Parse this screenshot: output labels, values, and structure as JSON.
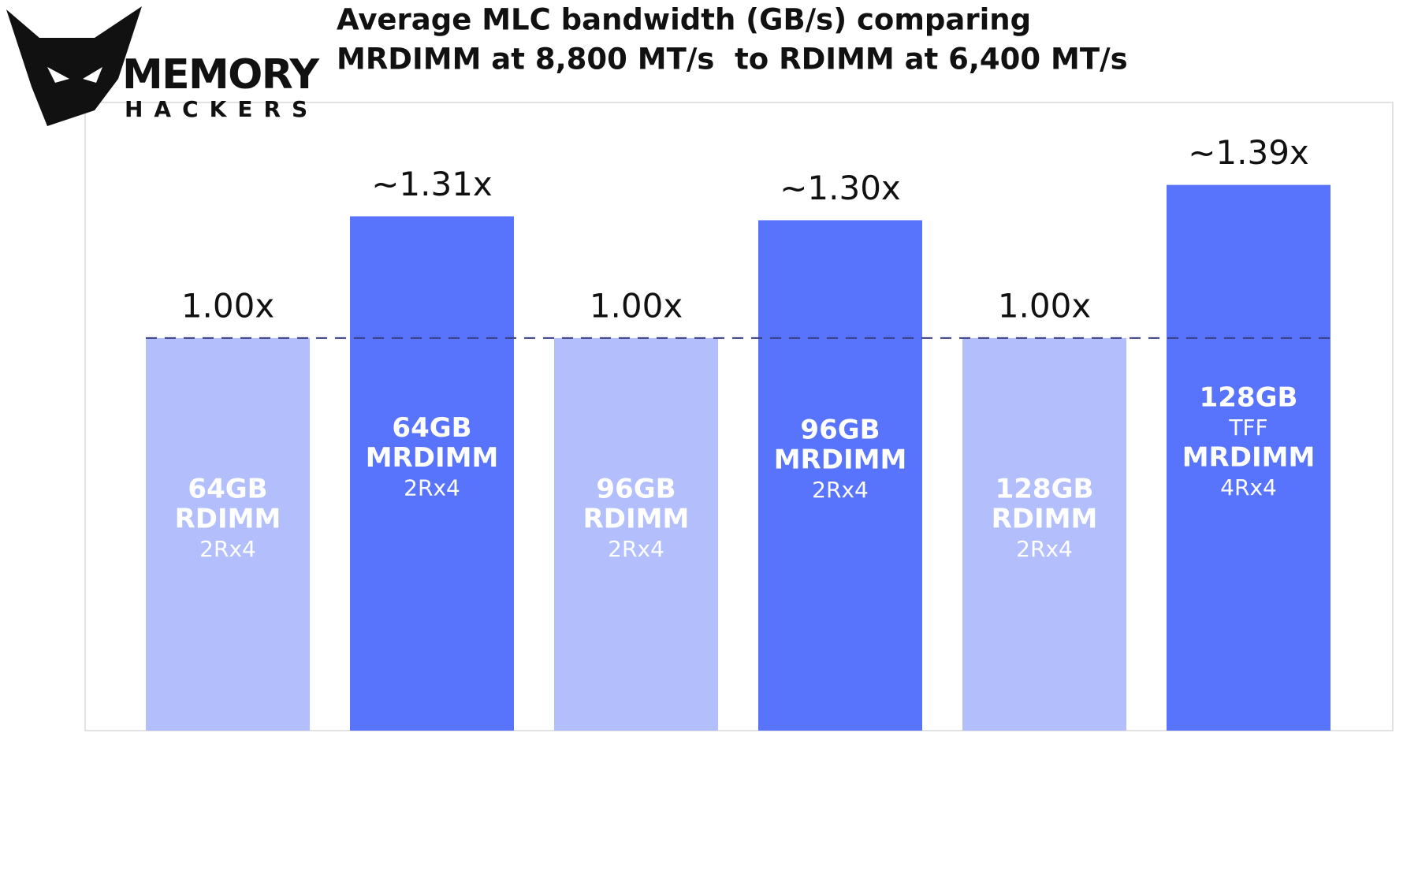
{
  "chart_data": {
    "type": "bar",
    "title": [
      "Average MLC bandwidth (GB/s) comparing",
      "MRDIMM at 8,800 MT/s  to RDIMM at 6,400 MT/s"
    ],
    "logo": [
      "MEMORY",
      "HACKERS"
    ],
    "categories": [
      [
        "64GB",
        "RDIMM",
        "2Rx4"
      ],
      [
        "64GB",
        "MRDIMM",
        "2Rx4"
      ],
      [
        "96GB",
        "RDIMM",
        "2Rx4"
      ],
      [
        "96GB",
        "MRDIMM",
        "2Rx4"
      ],
      [
        "128GB",
        "RDIMM",
        "2Rx4"
      ],
      [
        "128GB",
        "TFF",
        "MRDIMM",
        "4Rx4"
      ]
    ],
    "values": [
      1.0,
      1.31,
      1.0,
      1.3,
      1.0,
      1.39
    ],
    "value_labels": [
      "1.00x",
      "~1.31x",
      "1.00x",
      "~1.30x",
      "1.00x",
      "~1.39x"
    ],
    "colors": [
      "#b3bffc",
      "#5874fc",
      "#b3bffc",
      "#5874fc",
      "#b3bffc",
      "#5874fc"
    ],
    "baseline": 1,
    "ylim": [
      0,
      1.6
    ]
  }
}
